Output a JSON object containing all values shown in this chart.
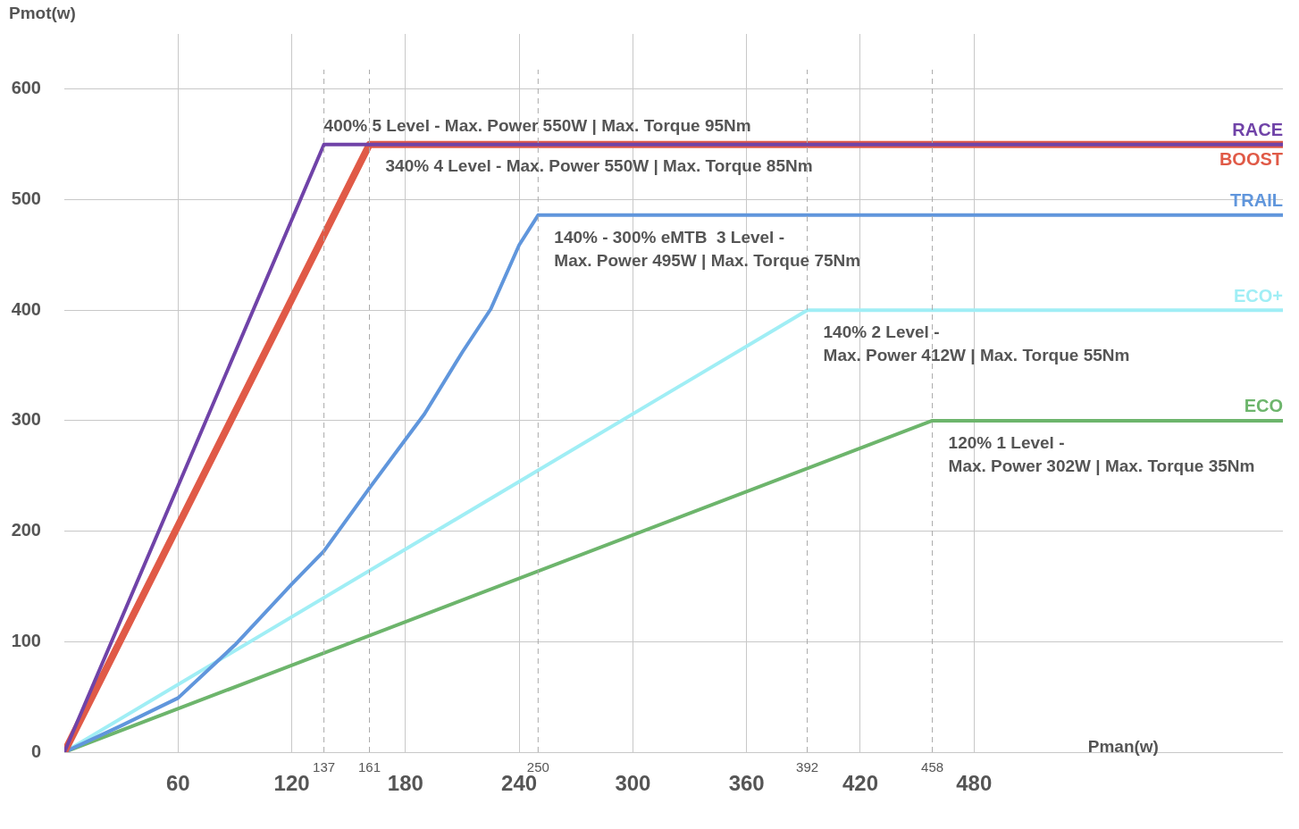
{
  "chart_data": {
    "type": "line",
    "xlabel": "Pman(w)",
    "ylabel": "Pmot(w)",
    "xlim": [
      0,
      643
    ],
    "ylim": [
      0,
      650
    ],
    "xticks": [
      60,
      120,
      180,
      240,
      300,
      360,
      420,
      480
    ],
    "yticks": [
      0,
      100,
      200,
      300,
      400,
      500,
      600
    ],
    "grid": true,
    "legend": false,
    "series": [
      {
        "name": "RACE",
        "color": "#7043a8",
        "x": [
          0,
          137,
          643
        ],
        "values": [
          0,
          550,
          550
        ]
      },
      {
        "name": "BOOST",
        "color": "#e05a47",
        "x": [
          0,
          161,
          643
        ],
        "values": [
          0,
          550,
          550
        ]
      },
      {
        "name": "TRAIL",
        "color": "#6096dc",
        "x": [
          0,
          30,
          60,
          90,
          120,
          137,
          161,
          180,
          190,
          210,
          225,
          240,
          250,
          643
        ],
        "values": [
          0,
          24,
          49,
          97,
          152,
          182,
          239,
          283,
          306,
          362,
          401,
          459,
          486,
          486
        ]
      },
      {
        "name": "ECO+",
        "color": "#a0eef5",
        "x": [
          0,
          392,
          643
        ],
        "values": [
          0,
          400,
          400
        ]
      },
      {
        "name": "ECO",
        "color": "#6db56c",
        "x": [
          0,
          458,
          643
        ],
        "values": [
          0,
          300,
          300
        ]
      }
    ],
    "ref_lines": [
      {
        "axis": "x",
        "value": 137,
        "label": "137",
        "line_style": "dashed"
      },
      {
        "axis": "x",
        "value": 161,
        "label": "161",
        "line_style": "dashed"
      },
      {
        "axis": "x",
        "value": 250,
        "label": "250",
        "line_style": "dashed"
      },
      {
        "axis": "x",
        "value": 392,
        "label": "392",
        "line_style": "dashed"
      },
      {
        "axis": "x",
        "value": 458,
        "label": "458",
        "line_style": "dashed"
      }
    ],
    "annotations": [
      "400% 5 Level - Max. Power 550W | Max. Torque 95Nm",
      "340% 4 Level - Max. Power 550W | Max. Torque 85Nm",
      "140% - 300% eMTB  3 Level -\nMax. Power 495W | Max. Torque 75Nm",
      "140% 2 Level -\nMax. Power 412W | Max. Torque 55Nm",
      "120% 1 Level -\nMax. Power 302W | Max. Torque 35Nm"
    ]
  }
}
